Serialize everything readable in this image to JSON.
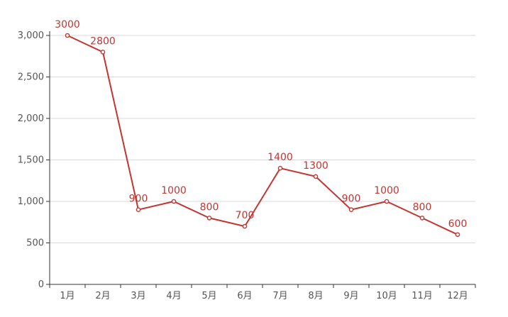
{
  "chart_data": {
    "type": "line",
    "title": "",
    "xlabel": "",
    "ylabel": "",
    "categories": [
      "1月",
      "2月",
      "3月",
      "4月",
      "5月",
      "6月",
      "7月",
      "8月",
      "9月",
      "10月",
      "11月",
      "12月"
    ],
    "series": [
      {
        "values": [
          3000,
          2800,
          900,
          1000,
          800,
          700,
          1400,
          1300,
          900,
          1000,
          800,
          600
        ],
        "color": "#c23531"
      }
    ],
    "y_ticks": [
      0,
      500,
      1000,
      1500,
      2000,
      2500,
      3000
    ],
    "y_tick_labels": [
      "0",
      "500",
      "1,000",
      "1,500",
      "2,000",
      "2,500",
      "3,000"
    ],
    "ylim": [
      0,
      3000
    ],
    "grid": true,
    "data_labels": true,
    "legend": "none"
  }
}
